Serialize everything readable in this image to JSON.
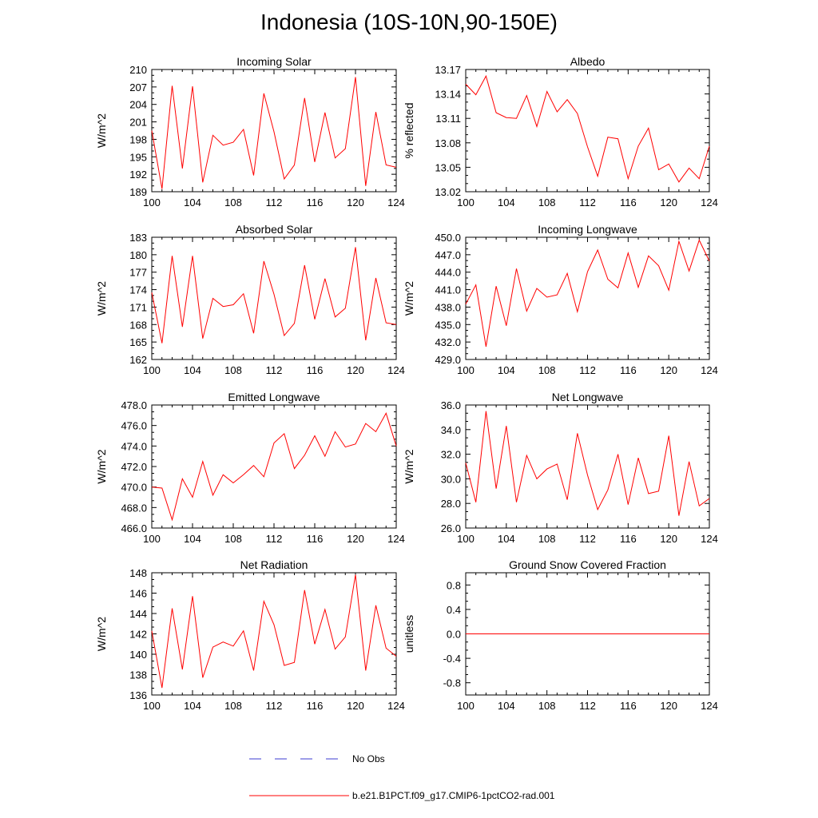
{
  "title": "Indonesia (10S-10N,90-150E)",
  "colors": {
    "model_line": "#ff0000",
    "obs_line": "#3b3bd1",
    "axis": "#000000"
  },
  "legend": {
    "items": [
      {
        "label": "No Obs",
        "style": "dashed",
        "color": "#3b3bd1"
      },
      {
        "label": "b.e21.B1PCT.f09_g17.CMIP6-1pctCO2-rad.001",
        "style": "solid",
        "color": "#ff0000"
      }
    ]
  },
  "chart_data": [
    {
      "type": "line",
      "title": "Incoming Solar",
      "xlabel": "",
      "ylabel": "W/m^2",
      "xlim": [
        100,
        124
      ],
      "xticks": [
        "100",
        "104",
        "108",
        "112",
        "116",
        "120",
        "124"
      ],
      "ylim": [
        189,
        210
      ],
      "yticks": [
        "189",
        "192",
        "195",
        "198",
        "201",
        "204",
        "207",
        "210"
      ],
      "x": [
        100,
        101,
        102,
        103,
        104,
        105,
        106,
        107,
        108,
        109,
        110,
        111,
        112,
        113,
        114,
        115,
        116,
        117,
        118,
        119,
        120,
        121,
        122,
        123,
        124
      ],
      "series": [
        {
          "name": "b.e21.B1PCT.f09_g17.CMIP6-1pctCO2-rad.001",
          "values": [
            199.5,
            189.5,
            207.2,
            193.0,
            207.1,
            190.6,
            198.7,
            197.0,
            197.5,
            199.7,
            191.8,
            205.9,
            199.3,
            191.2,
            193.6,
            205.1,
            194.1,
            202.6,
            194.8,
            196.4,
            208.7,
            190.0,
            202.7,
            193.6,
            193.2
          ]
        }
      ]
    },
    {
      "type": "line",
      "title": "Albedo",
      "xlabel": "",
      "ylabel": "% reflected",
      "xlim": [
        100,
        124
      ],
      "xticks": [
        "100",
        "104",
        "108",
        "112",
        "116",
        "120",
        "124"
      ],
      "ylim": [
        13.02,
        13.17
      ],
      "yticks": [
        "13.02",
        "13.05",
        "13.08",
        "13.11",
        "13.14",
        "13.17"
      ],
      "x": [
        100,
        101,
        102,
        103,
        104,
        105,
        106,
        107,
        108,
        109,
        110,
        111,
        112,
        113,
        114,
        115,
        116,
        117,
        118,
        119,
        120,
        121,
        122,
        123,
        124
      ],
      "series": [
        {
          "name": "b.e21.B1PCT.f09_g17.CMIP6-1pctCO2-rad.001",
          "values": [
            13.152,
            13.139,
            13.162,
            13.117,
            13.111,
            13.11,
            13.138,
            13.1,
            13.143,
            13.118,
            13.133,
            13.116,
            13.075,
            13.039,
            13.087,
            13.085,
            13.036,
            13.076,
            13.098,
            13.047,
            13.054,
            13.032,
            13.049,
            13.036,
            13.076
          ]
        }
      ]
    },
    {
      "type": "line",
      "title": "Absorbed Solar",
      "xlabel": "",
      "ylabel": "W/m^2",
      "xlim": [
        100,
        124
      ],
      "xticks": [
        "100",
        "104",
        "108",
        "112",
        "116",
        "120",
        "124"
      ],
      "ylim": [
        162,
        183
      ],
      "yticks": [
        "162",
        "165",
        "168",
        "171",
        "174",
        "177",
        "180",
        "183"
      ],
      "x": [
        100,
        101,
        102,
        103,
        104,
        105,
        106,
        107,
        108,
        109,
        110,
        111,
        112,
        113,
        114,
        115,
        116,
        117,
        118,
        119,
        120,
        121,
        122,
        123,
        124
      ],
      "series": [
        {
          "name": "b.e21.B1PCT.f09_g17.CMIP6-1pctCO2-rad.001",
          "values": [
            173.5,
            164.8,
            179.8,
            167.6,
            179.8,
            165.6,
            172.5,
            171.1,
            171.4,
            173.3,
            166.5,
            178.9,
            173.2,
            166.1,
            168.2,
            178.2,
            168.9,
            175.9,
            169.3,
            170.8,
            181.3,
            165.3,
            176.0,
            168.3,
            168.0
          ]
        }
      ]
    },
    {
      "type": "line",
      "title": "Incoming Longwave",
      "xlabel": "",
      "ylabel": "W/m^2",
      "xlim": [
        100,
        124
      ],
      "xticks": [
        "100",
        "104",
        "108",
        "112",
        "116",
        "120",
        "124"
      ],
      "ylim": [
        429,
        450
      ],
      "yticks": [
        "429.0",
        "432.0",
        "435.0",
        "438.0",
        "441.0",
        "444.0",
        "447.0",
        "450.0"
      ],
      "x": [
        100,
        101,
        102,
        103,
        104,
        105,
        106,
        107,
        108,
        109,
        110,
        111,
        112,
        113,
        114,
        115,
        116,
        117,
        118,
        119,
        120,
        121,
        122,
        123,
        124
      ],
      "series": [
        {
          "name": "b.e21.B1PCT.f09_g17.CMIP6-1pctCO2-rad.001",
          "values": [
            438.5,
            441.8,
            431.2,
            441.6,
            434.8,
            444.6,
            437.3,
            441.2,
            439.7,
            440.1,
            443.8,
            437.2,
            444.1,
            447.8,
            442.8,
            441.3,
            447.3,
            441.4,
            446.8,
            445.1,
            440.9,
            449.3,
            444.2,
            449.5,
            445.9
          ]
        }
      ]
    },
    {
      "type": "line",
      "title": "Emitted Longwave",
      "xlabel": "",
      "ylabel": "W/m^2",
      "xlim": [
        100,
        124
      ],
      "xticks": [
        "100",
        "104",
        "108",
        "112",
        "116",
        "120",
        "124"
      ],
      "ylim": [
        466,
        478
      ],
      "yticks": [
        "466.0",
        "468.0",
        "470.0",
        "472.0",
        "474.0",
        "476.0",
        "478.0"
      ],
      "x": [
        100,
        101,
        102,
        103,
        104,
        105,
        106,
        107,
        108,
        109,
        110,
        111,
        112,
        113,
        114,
        115,
        116,
        117,
        118,
        119,
        120,
        121,
        122,
        123,
        124
      ],
      "series": [
        {
          "name": "b.e21.B1PCT.f09_g17.CMIP6-1pctCO2-rad.001",
          "values": [
            470.0,
            469.9,
            466.8,
            470.8,
            469.0,
            472.5,
            469.2,
            471.2,
            470.4,
            471.2,
            472.1,
            471.0,
            474.3,
            475.2,
            471.8,
            473.1,
            475.0,
            473.0,
            475.4,
            473.9,
            474.2,
            476.2,
            475.4,
            477.2,
            474.0
          ]
        }
      ]
    },
    {
      "type": "line",
      "title": "Net Longwave",
      "xlabel": "",
      "ylabel": "W/m^2",
      "xlim": [
        100,
        124
      ],
      "xticks": [
        "100",
        "104",
        "108",
        "112",
        "116",
        "120",
        "124"
      ],
      "ylim": [
        26,
        36
      ],
      "yticks": [
        "26.0",
        "28.0",
        "30.0",
        "32.0",
        "34.0",
        "36.0"
      ],
      "x": [
        100,
        101,
        102,
        103,
        104,
        105,
        106,
        107,
        108,
        109,
        110,
        111,
        112,
        113,
        114,
        115,
        116,
        117,
        118,
        119,
        120,
        121,
        122,
        123,
        124
      ],
      "series": [
        {
          "name": "b.e21.B1PCT.f09_g17.CMIP6-1pctCO2-rad.001",
          "values": [
            31.3,
            28.1,
            35.5,
            29.2,
            34.3,
            28.1,
            31.9,
            30.0,
            30.8,
            31.2,
            28.3,
            33.7,
            30.3,
            27.5,
            29.1,
            32.0,
            27.9,
            31.7,
            28.8,
            29.0,
            33.5,
            27.0,
            31.4,
            27.8,
            28.4
          ]
        }
      ]
    },
    {
      "type": "line",
      "title": "Net Radiation",
      "xlabel": "",
      "ylabel": "W/m^2",
      "xlim": [
        100,
        124
      ],
      "xticks": [
        "100",
        "104",
        "108",
        "112",
        "116",
        "120",
        "124"
      ],
      "ylim": [
        136,
        148
      ],
      "yticks": [
        "136",
        "138",
        "140",
        "142",
        "144",
        "146",
        "148"
      ],
      "x": [
        100,
        101,
        102,
        103,
        104,
        105,
        106,
        107,
        108,
        109,
        110,
        111,
        112,
        113,
        114,
        115,
        116,
        117,
        118,
        119,
        120,
        121,
        122,
        123,
        124
      ],
      "series": [
        {
          "name": "b.e21.B1PCT.f09_g17.CMIP6-1pctCO2-rad.001",
          "values": [
            142.3,
            136.7,
            144.5,
            138.5,
            145.7,
            137.7,
            140.7,
            141.2,
            140.8,
            142.3,
            138.4,
            145.2,
            142.9,
            138.9,
            139.2,
            146.3,
            141.0,
            144.4,
            140.5,
            141.7,
            147.8,
            138.4,
            144.8,
            140.6,
            139.8
          ]
        }
      ]
    },
    {
      "type": "line",
      "title": "Ground Snow Covered Fraction",
      "xlabel": "",
      "ylabel": "unitless",
      "xlim": [
        100,
        124
      ],
      "xticks": [
        "100",
        "104",
        "108",
        "112",
        "116",
        "120",
        "124"
      ],
      "ylim": [
        -1.0,
        1.0
      ],
      "yticks": [
        "-0.8",
        "-0.4",
        "0.0",
        "0.4",
        "0.8"
      ],
      "ytick_values": [
        -0.8,
        -0.4,
        0.0,
        0.4,
        0.8
      ],
      "x": [
        100,
        101,
        102,
        103,
        104,
        105,
        106,
        107,
        108,
        109,
        110,
        111,
        112,
        113,
        114,
        115,
        116,
        117,
        118,
        119,
        120,
        121,
        122,
        123,
        124
      ],
      "series": [
        {
          "name": "b.e21.B1PCT.f09_g17.CMIP6-1pctCO2-rad.001",
          "values": [
            0,
            0,
            0,
            0,
            0,
            0,
            0,
            0,
            0,
            0,
            0,
            0,
            0,
            0,
            0,
            0,
            0,
            0,
            0,
            0,
            0,
            0,
            0,
            0,
            0
          ]
        }
      ]
    }
  ]
}
